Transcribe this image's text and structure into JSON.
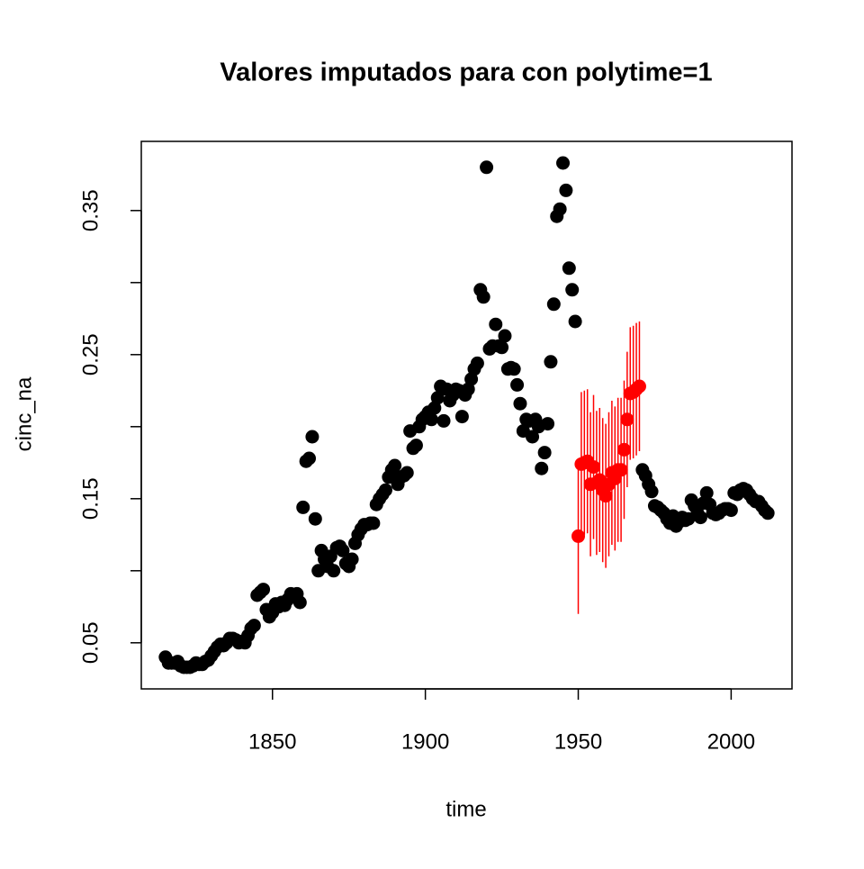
{
  "chart_data": {
    "type": "scatter",
    "title": "Valores imputados para con polytime=1",
    "x_label": "time",
    "y_label": "cinc_na",
    "xlim": [
      1807.1,
      2019.9
    ],
    "ylim": [
      0.018,
      0.398
    ],
    "xticks": [
      1850,
      1900,
      1950,
      2000
    ],
    "yticks": [
      0.05,
      0.15,
      0.25,
      0.35
    ],
    "yticks_unlabeled": [
      0.1,
      0.2,
      0.3
    ],
    "series": [
      {
        "color": "#000000",
        "x": [
          1815,
          1816,
          1817,
          1818,
          1819,
          1820,
          1821,
          1822,
          1823,
          1824,
          1825,
          1826,
          1827,
          1828,
          1829,
          1830,
          1831,
          1832,
          1833,
          1834,
          1835,
          1836,
          1837,
          1838,
          1839,
          1840,
          1841,
          1842,
          1843,
          1844,
          1845,
          1846,
          1847,
          1848,
          1849,
          1850,
          1851,
          1852,
          1853,
          1854,
          1855,
          1856,
          1857,
          1858,
          1859,
          1860,
          1861,
          1862,
          1863,
          1864,
          1865,
          1866,
          1867,
          1868,
          1869,
          1870,
          1871,
          1872,
          1873,
          1874,
          1875,
          1876,
          1877,
          1878,
          1879,
          1880,
          1881,
          1882,
          1883,
          1884,
          1885,
          1886,
          1887,
          1888,
          1889,
          1890,
          1891,
          1892,
          1893,
          1894,
          1895,
          1896,
          1897,
          1898,
          1899,
          1900,
          1901,
          1902,
          1903,
          1904,
          1905,
          1906,
          1907,
          1908,
          1909,
          1910,
          1911,
          1912,
          1913,
          1914,
          1915,
          1916,
          1917,
          1918,
          1919,
          1920,
          1921,
          1922,
          1923,
          1924,
          1925,
          1926,
          1927,
          1928,
          1929,
          1930,
          1931,
          1932,
          1933,
          1934,
          1935,
          1936,
          1937,
          1938,
          1939,
          1940,
          1941,
          1942,
          1943,
          1944,
          1945,
          1946,
          1947,
          1948,
          1949
        ],
        "values": [
          0.04,
          0.036,
          0.036,
          0.036,
          0.037,
          0.034,
          0.033,
          0.033,
          0.033,
          0.034,
          0.036,
          0.035,
          0.035,
          0.037,
          0.038,
          0.041,
          0.044,
          0.047,
          0.049,
          0.048,
          0.05,
          0.053,
          0.053,
          0.052,
          0.05,
          0.051,
          0.05,
          0.055,
          0.06,
          0.062,
          0.083,
          0.085,
          0.087,
          0.073,
          0.068,
          0.071,
          0.077,
          0.075,
          0.078,
          0.076,
          0.08,
          0.084,
          0.083,
          0.084,
          0.078,
          0.144,
          0.176,
          0.178,
          0.193,
          0.136,
          0.1,
          0.114,
          0.108,
          0.103,
          0.11,
          0.1,
          0.116,
          0.117,
          0.114,
          0.105,
          0.103,
          0.108,
          0.119,
          0.125,
          0.129,
          0.132,
          0.132,
          0.133,
          0.133,
          0.146,
          0.15,
          0.153,
          0.156,
          0.165,
          0.17,
          0.173,
          0.16,
          0.165,
          0.166,
          0.168,
          0.197,
          0.185,
          0.187,
          0.2,
          0.205,
          0.207,
          0.21,
          0.205,
          0.213,
          0.22,
          0.228,
          0.204,
          0.226,
          0.218,
          0.222,
          0.226,
          0.225,
          0.207,
          0.222,
          0.226,
          0.233,
          0.24,
          0.244,
          0.295,
          0.29,
          0.38,
          0.254,
          0.256,
          0.271,
          0.256,
          0.255,
          0.263,
          0.24,
          0.241,
          0.24,
          0.229,
          0.216,
          0.197,
          0.205,
          0.204,
          0.193,
          0.205,
          0.2,
          0.171,
          0.182,
          0.202,
          0.245,
          0.285,
          0.346,
          0.351,
          0.383,
          0.364,
          0.31,
          0.295,
          0.273
        ]
      },
      {
        "color": "#000000",
        "x": [
          1971,
          1972,
          1973,
          1974,
          1975,
          1976,
          1977,
          1978,
          1979,
          1980,
          1981,
          1982,
          1983,
          1984,
          1985,
          1986,
          1987,
          1988,
          1989,
          1990,
          1991,
          1992,
          1993,
          1994,
          1995,
          1996,
          1997,
          1998,
          1999,
          2000,
          2001,
          2002,
          2003,
          2004,
          2005,
          2006,
          2007,
          2008,
          2009,
          2010,
          2011,
          2012
        ],
        "values": [
          0.17,
          0.166,
          0.16,
          0.155,
          0.145,
          0.144,
          0.142,
          0.14,
          0.136,
          0.133,
          0.138,
          0.131,
          0.134,
          0.137,
          0.135,
          0.136,
          0.149,
          0.145,
          0.14,
          0.137,
          0.147,
          0.154,
          0.146,
          0.14,
          0.139,
          0.14,
          0.142,
          0.143,
          0.143,
          0.142,
          0.154,
          0.153,
          0.156,
          0.157,
          0.156,
          0.153,
          0.15,
          0.148,
          0.148,
          0.145,
          0.142,
          0.14
        ]
      },
      {
        "color": "#ff0000",
        "x": [
          1950,
          1951,
          1952,
          1953,
          1954,
          1955,
          1956,
          1957,
          1958,
          1959,
          1960,
          1961,
          1962,
          1963,
          1964,
          1965,
          1966,
          1967,
          1968,
          1969,
          1970
        ],
        "values": [
          0.124,
          0.174,
          0.175,
          0.176,
          0.16,
          0.172,
          0.161,
          0.163,
          0.156,
          0.152,
          0.16,
          0.168,
          0.164,
          0.17,
          0.17,
          0.184,
          0.205,
          0.223,
          0.224,
          0.226,
          0.228
        ],
        "errors": [
          0.054,
          0.05,
          0.05,
          0.05,
          0.05,
          0.05,
          0.05,
          0.05,
          0.05,
          0.05,
          0.05,
          0.05,
          0.05,
          0.05,
          0.05,
          0.048,
          0.047,
          0.046,
          0.046,
          0.046,
          0.045
        ]
      }
    ]
  }
}
